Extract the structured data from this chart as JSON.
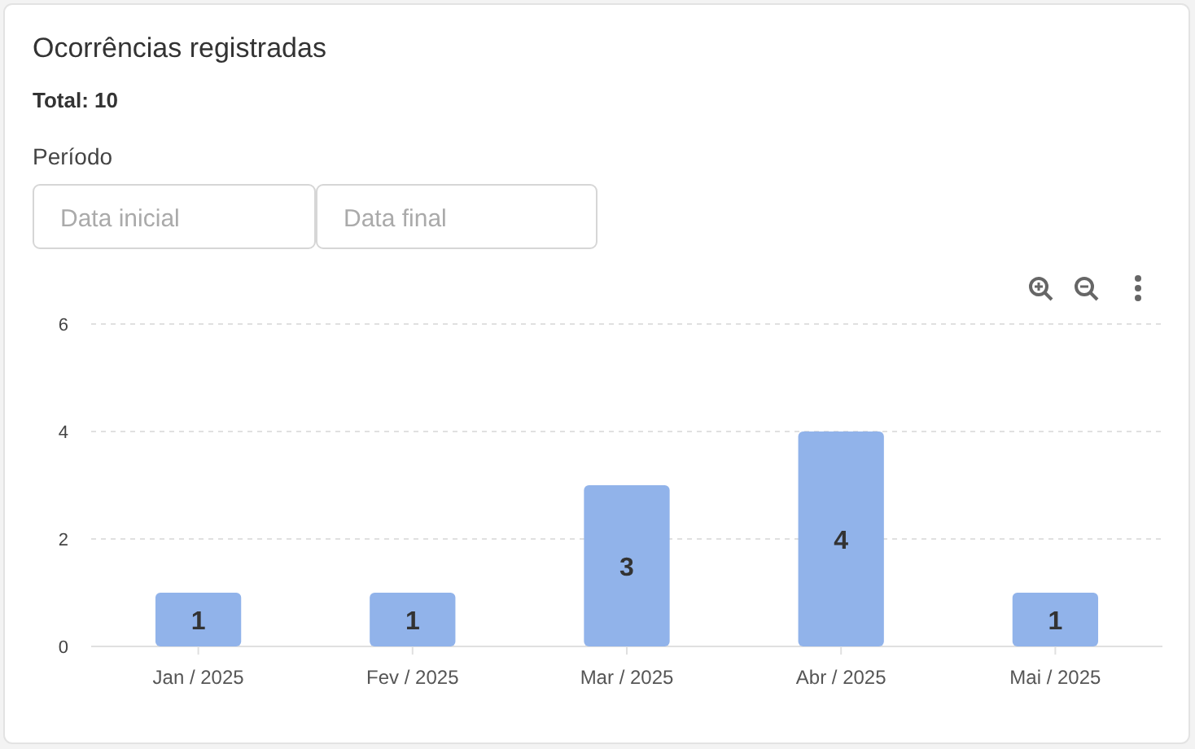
{
  "chart_data": {
    "type": "bar",
    "title": "Ocorrências registradas",
    "subtitle": "Total: 10",
    "annotations": [
      "Período",
      "Data inicial",
      "Data final"
    ],
    "categories": [
      "Jan / 2025",
      "Fev / 2025",
      "Mar / 2025",
      "Abr / 2025",
      "Mai / 2025"
    ],
    "values": [
      1,
      1,
      3,
      4,
      1
    ],
    "color": "#91b3ea",
    "ylim": [
      0,
      6
    ],
    "yticks": [
      0,
      2,
      4,
      6
    ],
    "grid": "y",
    "data_labels": true
  }
}
